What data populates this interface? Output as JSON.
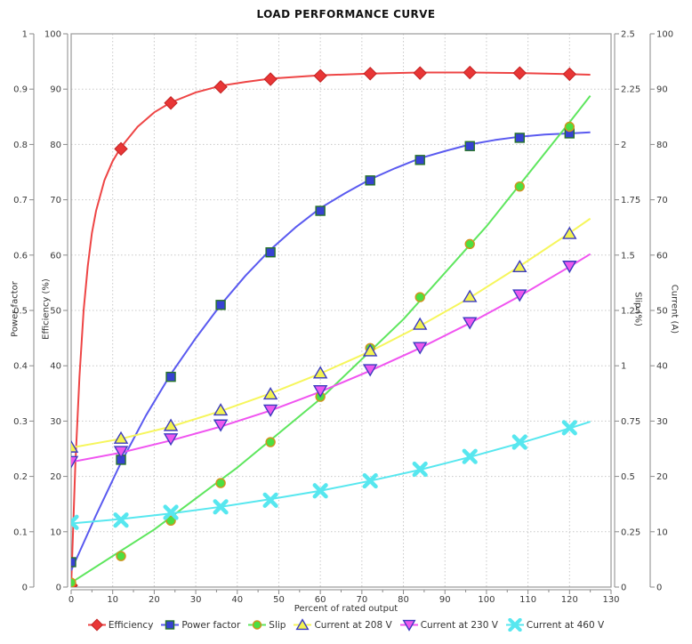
{
  "title": "LOAD PERFORMANCE CURVE",
  "chart_data": {
    "type": "line",
    "title": "LOAD PERFORMANCE CURVE",
    "grid": true,
    "legend_position": "bottom",
    "x_axis": {
      "label": "Percent of rated output",
      "min": 0,
      "max": 130,
      "step": 10,
      "minor_step": 5
    },
    "axes": {
      "power_factor": {
        "label": "Power factor",
        "min": 0,
        "max": 1,
        "step": 0.1,
        "position": "left-outer"
      },
      "efficiency": {
        "label": "Efficiency (%)",
        "min": 0,
        "max": 100,
        "step": 10,
        "position": "left-inner"
      },
      "slip": {
        "label": "Slip (%)",
        "min": 0,
        "max": 2.5,
        "step": 0.25,
        "position": "right-inner"
      },
      "current": {
        "label": "Current (A)",
        "min": 0,
        "max": 100,
        "step": 10,
        "position": "right-outer"
      }
    },
    "x": [
      0,
      12,
      24,
      36,
      48,
      60,
      72,
      84,
      96,
      108,
      120
    ],
    "series": [
      {
        "name": "Efficiency",
        "axis": "efficiency",
        "marker": "diamond",
        "line_color": "#ee4545",
        "fill": "#e83636",
        "stroke": "#c32222",
        "values": [
          0.3,
          79.2,
          87.5,
          90.4,
          91.8,
          92.4,
          92.8,
          92.9,
          93.0,
          92.9,
          92.7
        ],
        "fit_line": {
          "x": [
            0,
            1,
            2,
            3,
            4,
            5,
            6,
            8,
            10,
            12,
            16,
            20,
            24,
            30,
            36,
            42,
            48,
            60,
            72,
            84,
            96,
            108,
            120,
            125
          ],
          "y": [
            0,
            22,
            38,
            50,
            58,
            64,
            68,
            73.5,
            77,
            79.5,
            83.2,
            85.8,
            87.6,
            89.4,
            90.6,
            91.3,
            91.9,
            92.5,
            92.8,
            93.0,
            93.0,
            92.9,
            92.7,
            92.6
          ]
        }
      },
      {
        "name": "Power factor",
        "axis": "power_factor",
        "marker": "square",
        "line_color": "#5a5af0",
        "fill": "#3742d2",
        "stroke": "#27732a",
        "values": [
          0.045,
          0.23,
          0.38,
          0.51,
          0.605,
          0.68,
          0.735,
          0.772,
          0.797,
          0.812,
          0.82
        ],
        "fit_line": {
          "x": [
            0,
            6,
            12,
            18,
            24,
            30,
            36,
            42,
            48,
            54,
            60,
            66,
            72,
            78,
            84,
            90,
            96,
            102,
            108,
            114,
            120,
            125
          ],
          "y": [
            0.03,
            0.13,
            0.225,
            0.31,
            0.385,
            0.45,
            0.51,
            0.563,
            0.61,
            0.65,
            0.685,
            0.712,
            0.737,
            0.757,
            0.775,
            0.788,
            0.8,
            0.808,
            0.814,
            0.818,
            0.82,
            0.822
          ]
        }
      },
      {
        "name": "Slip",
        "axis": "slip",
        "marker": "circle",
        "line_color": "#5ee65e",
        "fill": "#4cdf41",
        "stroke": "#d2921c",
        "values": [
          0.02,
          0.14,
          0.3,
          0.47,
          0.655,
          0.86,
          1.08,
          1.31,
          1.55,
          1.81,
          2.08
        ],
        "fit_line": {
          "x": [
            0,
            20,
            40,
            60,
            80,
            100,
            120,
            125
          ],
          "y": [
            0.02,
            0.26,
            0.54,
            0.85,
            1.21,
            1.63,
            2.1,
            2.22
          ]
        }
      },
      {
        "name": "Current at 208 V",
        "axis": "current",
        "marker": "triangle-up",
        "line_color": "#f6f65c",
        "fill": "#f3f350",
        "stroke": "#3b3bc0",
        "values": [
          25.3,
          26.9,
          29.2,
          32.0,
          34.9,
          38.7,
          42.7,
          47.5,
          52.5,
          57.9,
          63.9
        ],
        "fit_line": {
          "x": [
            0,
            12,
            24,
            36,
            48,
            60,
            72,
            84,
            96,
            108,
            120,
            125
          ],
          "y": [
            25.2,
            26.8,
            29.0,
            31.8,
            35.0,
            38.6,
            42.6,
            47.2,
            52.3,
            58.0,
            64.0,
            66.6
          ]
        }
      },
      {
        "name": "Current at 230 V",
        "axis": "current",
        "marker": "triangle-down",
        "line_color": "#f054f0",
        "fill": "#ee58ee",
        "stroke": "#3b3bc0",
        "values": [
          22.7,
          24.5,
          26.8,
          29.3,
          32.0,
          35.5,
          39.3,
          43.3,
          47.8,
          52.8,
          58.0
        ],
        "fit_line": {
          "x": [
            0,
            12,
            24,
            36,
            48,
            60,
            72,
            84,
            96,
            108,
            120,
            125
          ],
          "y": [
            22.6,
            24.3,
            26.5,
            29.0,
            31.9,
            35.3,
            39.1,
            43.2,
            47.7,
            52.6,
            57.9,
            60.2
          ]
        }
      },
      {
        "name": "Current at 460 V",
        "axis": "current",
        "marker": "x-cross",
        "line_color": "#57e7ef",
        "fill": "#57e7ef",
        "stroke": "#57e7ef",
        "values": [
          11.7,
          12.1,
          13.5,
          14.5,
          15.7,
          17.4,
          19.2,
          21.3,
          23.6,
          26.2,
          28.8
        ],
        "fit_line": {
          "x": [
            0,
            12,
            24,
            36,
            48,
            60,
            72,
            84,
            96,
            108,
            120,
            125
          ],
          "y": [
            11.5,
            12.3,
            13.3,
            14.5,
            15.9,
            17.4,
            19.2,
            21.2,
            23.5,
            26.0,
            28.7,
            29.9
          ]
        }
      }
    ],
    "colors": {
      "grid": "#c8c8c8",
      "frame": "#9a9a9a",
      "axis": "#8a8a8a",
      "tick_label": "#3a3a3a"
    }
  }
}
